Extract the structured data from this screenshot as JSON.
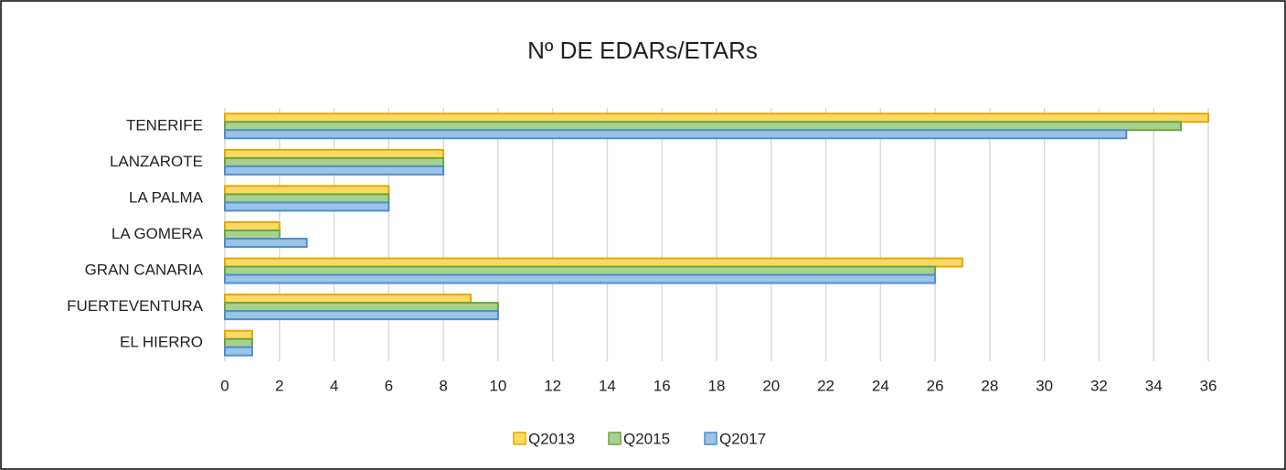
{
  "chart_data": {
    "type": "barh",
    "title": "Nº DE EDARs/ETARs",
    "categories": [
      "TENERIFE",
      "LANZAROTE",
      "LA PALMA",
      "LA GOMERA",
      "GRAN CANARIA",
      "FUERTEVENTURA",
      "EL HIERRO"
    ],
    "series": [
      {
        "name": "Q2013",
        "color": "#ffd966",
        "values": [
          36,
          8,
          6,
          2,
          27,
          9,
          1
        ]
      },
      {
        "name": "Q2015",
        "color": "#a9d18e",
        "values": [
          35,
          8,
          6,
          2,
          26,
          10,
          1
        ]
      },
      {
        "name": "Q2017",
        "color": "#9dc3e6",
        "values": [
          33,
          8,
          6,
          3,
          26,
          10,
          1
        ]
      }
    ],
    "xlim": [
      0,
      36
    ],
    "xticks": [
      0,
      2,
      4,
      6,
      8,
      10,
      12,
      14,
      16,
      18,
      20,
      22,
      24,
      26,
      28,
      30,
      32,
      34,
      36
    ],
    "grid": true,
    "legend": "bottom"
  }
}
